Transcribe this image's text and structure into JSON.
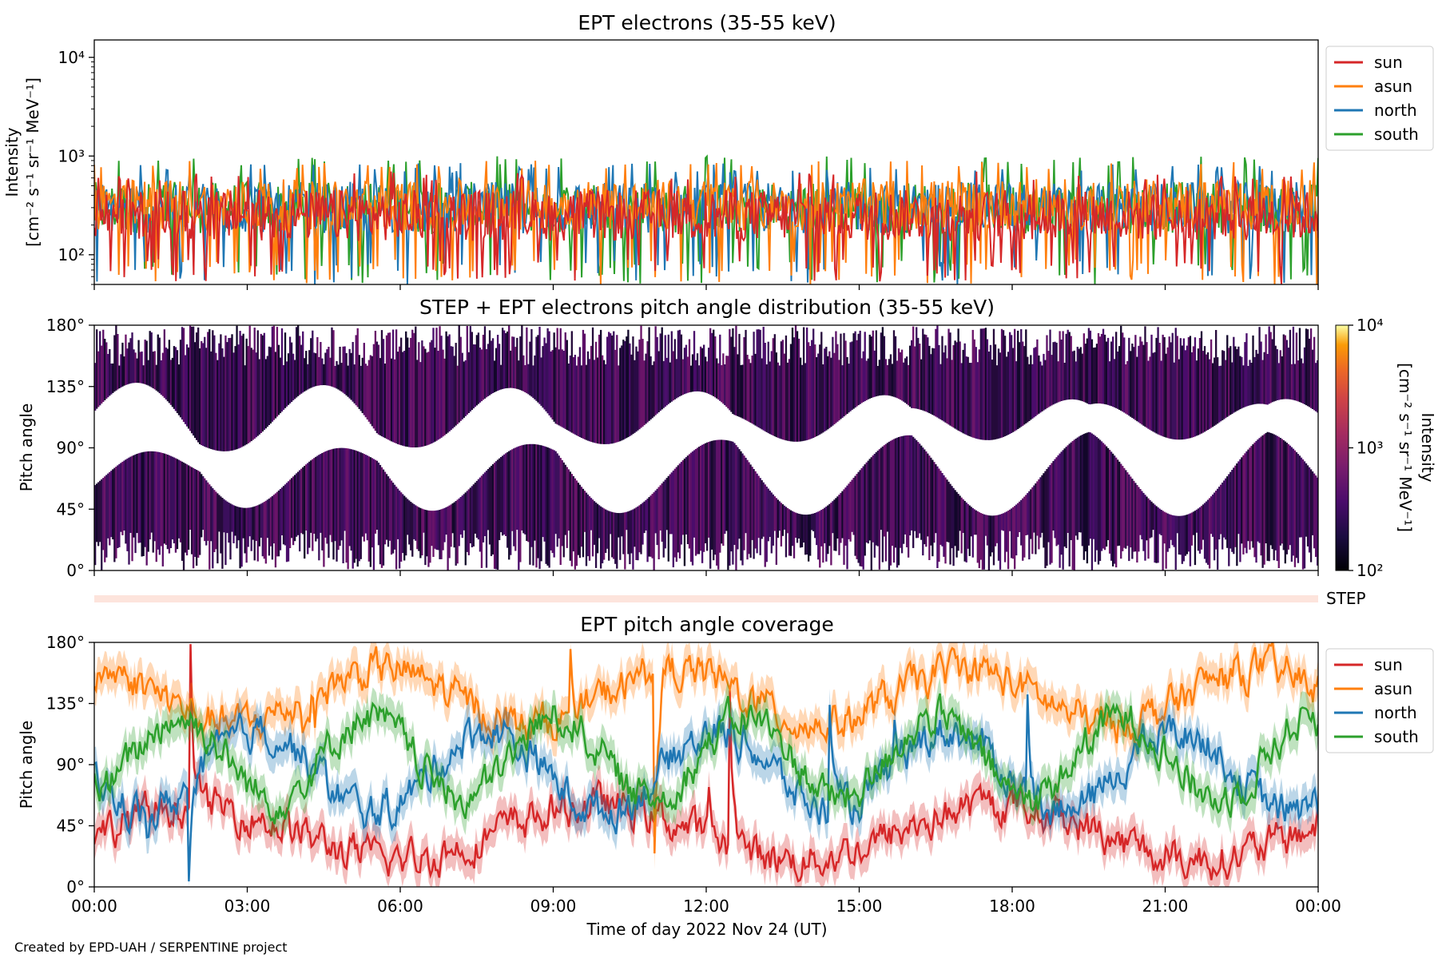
{
  "footer": {
    "credit": "Created by EPD-UAH / SERPENTINE project"
  },
  "chart_data": [
    {
      "type": "line",
      "title": "EPT electrons (35-55 keV)",
      "ylabel_line1": "Intensity",
      "ylabel_line2": "[cm⁻² s⁻¹ sr⁻¹ MeV⁻¹]",
      "yscale": "log",
      "ylim": [
        50,
        15000
      ],
      "yticks": [
        {
          "value": 100,
          "label": "10²"
        },
        {
          "value": 1000,
          "label": "10³"
        },
        {
          "value": 10000,
          "label": "10⁴"
        }
      ],
      "x_range_hours": [
        0,
        24
      ],
      "legend_position": "outside-right",
      "series": [
        {
          "name": "sun",
          "color": "#d62728",
          "typical": 250,
          "min": 50,
          "max": 700
        },
        {
          "name": "asun",
          "color": "#ff7f0e",
          "typical": 320,
          "min": 50,
          "max": 900
        },
        {
          "name": "north",
          "color": "#1f77b4",
          "typical": 300,
          "min": 50,
          "max": 850
        },
        {
          "name": "south",
          "color": "#2ca02c",
          "typical": 300,
          "min": 50,
          "max": 1000
        }
      ]
    },
    {
      "type": "heatmap",
      "title": "STEP + EPT electrons pitch angle distribution (35-55 keV)",
      "ylabel": "Pitch angle",
      "ylim": [
        0,
        180
      ],
      "yticks": [
        "0°",
        "45°",
        "90°",
        "135°",
        "180°"
      ],
      "x_range_hours": [
        0,
        24
      ],
      "colorbar": {
        "label_line1": "Intensity",
        "label_line2": "[cm⁻² s⁻¹ sr⁻¹ MeV⁻¹]",
        "scale": "log",
        "range": [
          100,
          10000
        ],
        "ticks": [
          "10²",
          "10³",
          "10⁴"
        ],
        "colormap": "inferno"
      },
      "typical_intensity": 250
    },
    {
      "type": "band",
      "label": "STEP",
      "color": "#fde4dc"
    },
    {
      "type": "line",
      "title": "EPT pitch angle coverage",
      "xlabel": "Time of day 2022 Nov 24 (UT)",
      "ylabel": "Pitch angle",
      "ylim": [
        0,
        180
      ],
      "yticks": [
        "0°",
        "45°",
        "90°",
        "135°",
        "180°"
      ],
      "xticks": [
        "00:00",
        "03:00",
        "06:00",
        "09:00",
        "12:00",
        "15:00",
        "18:00",
        "21:00",
        "00:00"
      ],
      "legend_position": "outside-right",
      "series": [
        {
          "name": "sun",
          "color": "#d62728",
          "mean": 40,
          "amplitude": 20
        },
        {
          "name": "asun",
          "color": "#ff7f0e",
          "mean": 140,
          "amplitude": 20
        },
        {
          "name": "north",
          "color": "#1f77b4",
          "mean": 85,
          "amplitude": 30
        },
        {
          "name": "south",
          "color": "#2ca02c",
          "mean": 95,
          "amplitude": 30
        }
      ]
    }
  ]
}
